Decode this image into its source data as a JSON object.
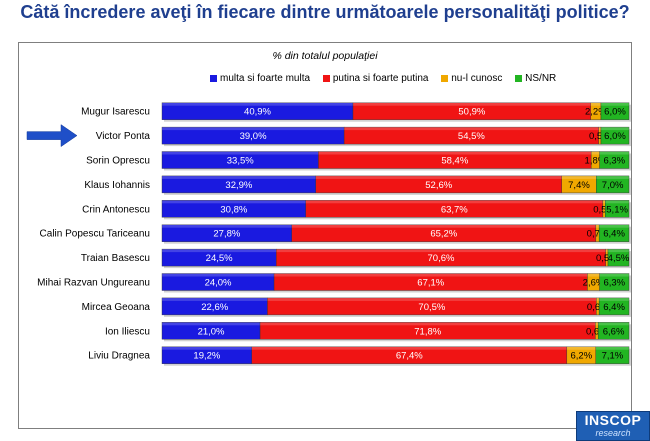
{
  "title": "Câtă încredere aveţi în fiecare dintre următoarele personalităţi politice?",
  "logo": {
    "main": "INSCOP",
    "sub": "research"
  },
  "chart_data": {
    "type": "bar",
    "orientation": "horizontal",
    "stacked": "percent",
    "subtitle": "% din totalul populaţiei",
    "legend_position": "top",
    "highlighted_category": "Victor Ponta",
    "categories": [
      "Mugur Isarescu",
      "Victor Ponta",
      "Sorin Oprescu",
      "Klaus Iohannis",
      "Crin Antonescu",
      "Calin Popescu Tariceanu",
      "Traian Basescu",
      "Mihai Razvan Ungureanu",
      "Mircea Geoana",
      "Ion Iliescu",
      "Liviu Dragnea"
    ],
    "series": [
      {
        "name": "multa si foarte multa",
        "color": "#1a1ae0",
        "values": [
          40.9,
          39.0,
          33.5,
          32.9,
          30.8,
          27.8,
          24.5,
          24.0,
          22.6,
          21.0,
          19.2
        ],
        "labels": [
          "40,9%",
          "39,0%",
          "33,5%",
          "32,9%",
          "30,8%",
          "27,8%",
          "24,5%",
          "24,0%",
          "22,6%",
          "21,0%",
          "19,2%"
        ]
      },
      {
        "name": "putina si foarte putina",
        "color": "#f01414",
        "values": [
          50.9,
          54.5,
          58.4,
          52.6,
          63.7,
          65.2,
          70.6,
          67.1,
          70.5,
          71.8,
          67.4
        ],
        "labels": [
          "50,9%",
          "54,5%",
          "58,4%",
          "52,6%",
          "63,7%",
          "65,2%",
          "70,6%",
          "67,1%",
          "70,5%",
          "71,8%",
          "67,4%"
        ]
      },
      {
        "name": "nu-l cunosc",
        "color": "#f0a800",
        "values": [
          2.2,
          0.5,
          1.8,
          7.4,
          0.5,
          0.7,
          0.5,
          2.6,
          0.6,
          0.6,
          6.2
        ],
        "labels": [
          "2,2%",
          "0,5%",
          "1,8%",
          "7,4%",
          "0,5%",
          "0,7%",
          "0,5%",
          "2,6%",
          "0,6%",
          "0,6%",
          "6,2%"
        ]
      },
      {
        "name": "NS/NR",
        "color": "#22b522",
        "values": [
          6.0,
          6.0,
          6.3,
          7.0,
          5.1,
          6.4,
          4.5,
          6.3,
          6.4,
          6.6,
          7.1
        ],
        "labels": [
          "6,0%",
          "6,0%",
          "6,3%",
          "7,0%",
          "5,1%",
          "6,4%",
          "4,5%",
          "6,3%",
          "6,4%",
          "6,6%",
          "7,1%"
        ]
      }
    ]
  }
}
